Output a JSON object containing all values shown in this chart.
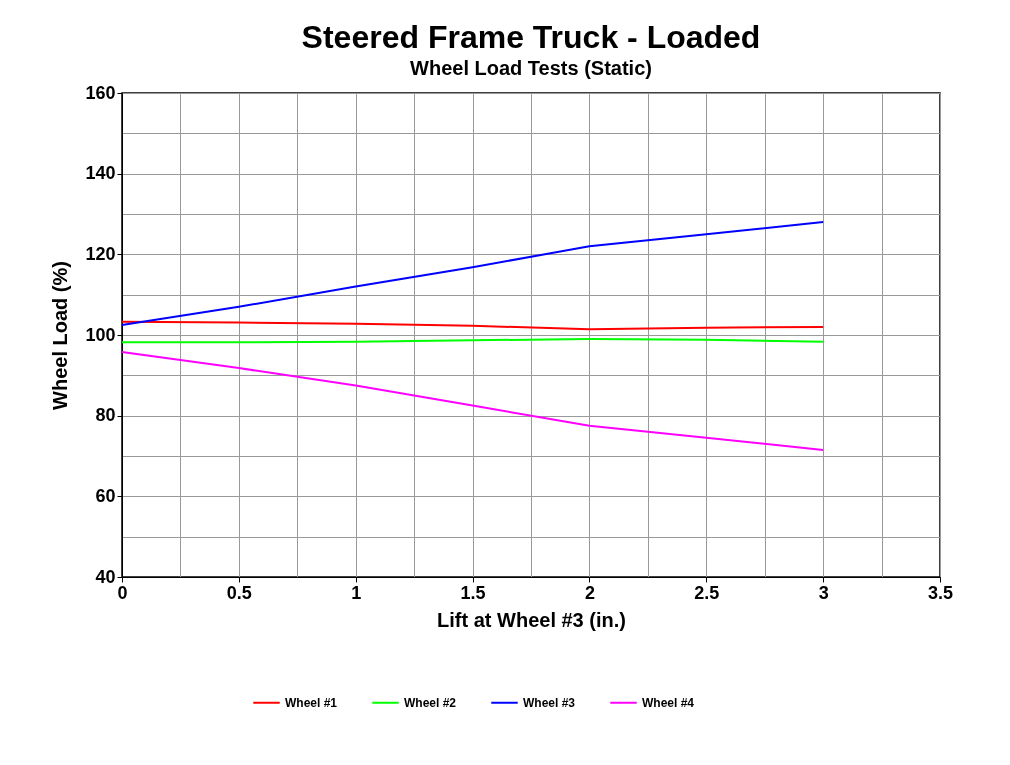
{
  "chart_data": {
    "type": "line",
    "title": "Steered Frame Truck - Loaded",
    "subtitle": "Wheel Load Tests (Static)",
    "xlabel": "Lift at Wheel #3 (in.)",
    "ylabel": "Wheel Load (%)",
    "x": [
      0,
      0.5,
      1,
      1.5,
      2,
      2.5,
      3
    ],
    "series": [
      {
        "name": "Wheel #1",
        "color": "#ff0000",
        "values": [
          103.3,
          103.1,
          102.8,
          102.3,
          101.4,
          101.8,
          102
        ]
      },
      {
        "name": "Wheel #2",
        "color": "#00ff00",
        "values": [
          98.2,
          98.2,
          98.3,
          98.7,
          99,
          98.8,
          98.3
        ]
      },
      {
        "name": "Wheel #3",
        "color": "#0000ff",
        "values": [
          102.5,
          107,
          112,
          116.8,
          122,
          125,
          128
        ]
      },
      {
        "name": "Wheel #4",
        "color": "#ff00ff",
        "values": [
          95.8,
          91.8,
          87.5,
          82.5,
          77.5,
          74.5,
          71.5
        ]
      }
    ],
    "xlim": [
      0,
      3.5
    ],
    "xticks": [
      0,
      0.5,
      1,
      1.5,
      2,
      2.5,
      3,
      3.5
    ],
    "ylim": [
      40,
      160
    ],
    "yticks": [
      40,
      60,
      80,
      100,
      120,
      140,
      160
    ],
    "grid": true,
    "legend": "bottom",
    "marker": "none",
    "line_style": "solid"
  }
}
